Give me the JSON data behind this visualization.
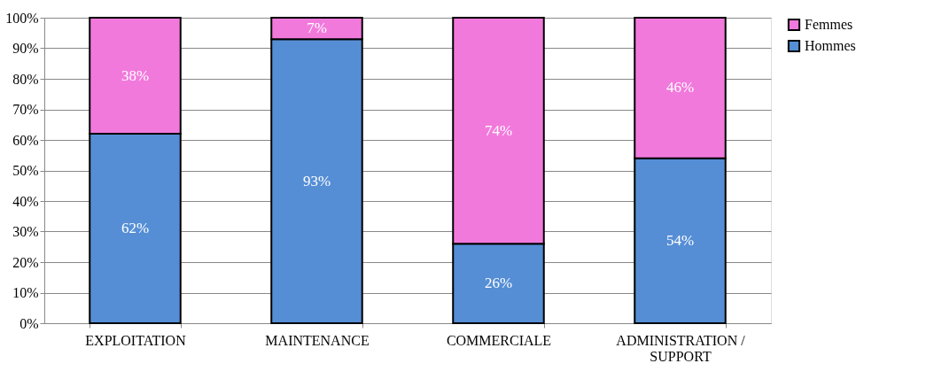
{
  "chart_data": {
    "type": "bar",
    "stacked": true,
    "categories": [
      "EXPLOITATION",
      "MAINTENANCE",
      "COMMERCIALE",
      "ADMINISTRATION / SUPPORT"
    ],
    "series": [
      {
        "name": "Hommes",
        "color": "#558ed5",
        "values": [
          62,
          93,
          26,
          54
        ],
        "value_labels": [
          "62%",
          "93%",
          "26%",
          "54%"
        ]
      },
      {
        "name": "Femmes",
        "color": "#f279dc",
        "values": [
          38,
          7,
          74,
          46
        ],
        "value_labels": [
          "38%",
          "7%",
          "74%",
          "46%"
        ]
      }
    ],
    "ylim": [
      0,
      100
    ],
    "yticks": [
      {
        "value": 0,
        "label": "0%"
      },
      {
        "value": 10,
        "label": "10%"
      },
      {
        "value": 20,
        "label": "20%"
      },
      {
        "value": 30,
        "label": "30%"
      },
      {
        "value": 40,
        "label": "40%"
      },
      {
        "value": 50,
        "label": "50%"
      },
      {
        "value": 60,
        "label": "60%"
      },
      {
        "value": 70,
        "label": "70%"
      },
      {
        "value": 80,
        "label": "80%"
      },
      {
        "value": 90,
        "label": "90%"
      },
      {
        "value": 100,
        "label": "100%"
      }
    ],
    "grid": "y",
    "legend": "right"
  }
}
